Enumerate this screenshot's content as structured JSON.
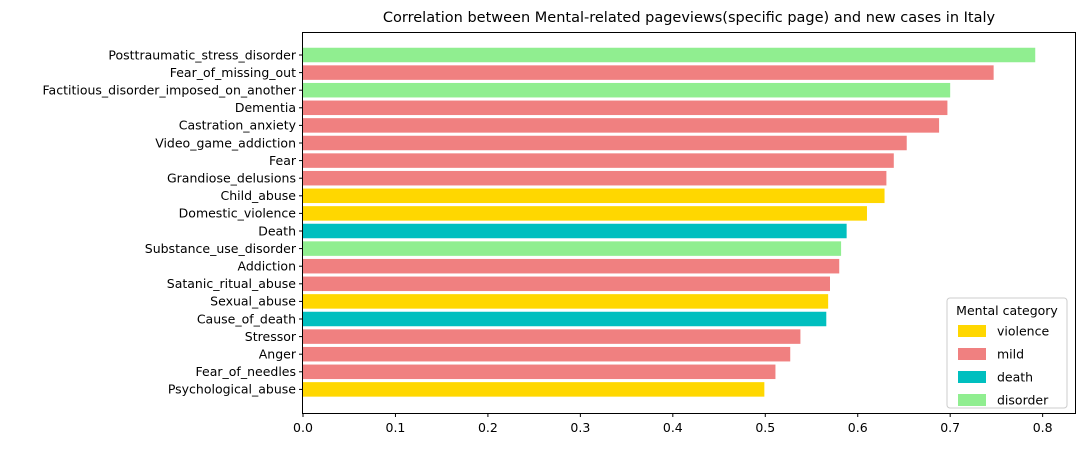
{
  "chart_data": {
    "type": "bar",
    "orientation": "horizontal",
    "title": "Correlation between Mental-related pageviews(specific page) and new cases in Italy",
    "xlabel": "",
    "ylabel": "",
    "xlim": [
      0,
      0.835
    ],
    "xticks": [
      0.0,
      0.1,
      0.2,
      0.3,
      0.4,
      0.5,
      0.6,
      0.7,
      0.8
    ],
    "xtick_labels": [
      "0.0",
      "0.1",
      "0.2",
      "0.3",
      "0.4",
      "0.5",
      "0.6",
      "0.7",
      "0.8"
    ],
    "grid": false,
    "legend": {
      "title": "Mental category",
      "placement": "lower-right",
      "entries": [
        {
          "label": "violence",
          "color": "#FFD700"
        },
        {
          "label": "mild",
          "color": "#F08080"
        },
        {
          "label": "death",
          "color": "#00BFBF"
        },
        {
          "label": "disorder",
          "color": "#90EE90"
        }
      ]
    },
    "bars": [
      {
        "label": "Posttraumatic_stress_disorder",
        "value": 0.792,
        "category": "disorder"
      },
      {
        "label": "Fear_of_missing_out",
        "value": 0.747,
        "category": "mild"
      },
      {
        "label": "Factitious_disorder_imposed_on_another",
        "value": 0.7,
        "category": "disorder"
      },
      {
        "label": "Dementia",
        "value": 0.697,
        "category": "mild"
      },
      {
        "label": "Castration_anxiety",
        "value": 0.688,
        "category": "mild"
      },
      {
        "label": "Video_game_addiction",
        "value": 0.653,
        "category": "mild"
      },
      {
        "label": "Fear",
        "value": 0.639,
        "category": "mild"
      },
      {
        "label": "Grandiose_delusions",
        "value": 0.631,
        "category": "mild"
      },
      {
        "label": "Child_abuse",
        "value": 0.629,
        "category": "violence"
      },
      {
        "label": "Domestic_violence",
        "value": 0.61,
        "category": "violence"
      },
      {
        "label": "Death",
        "value": 0.588,
        "category": "death"
      },
      {
        "label": "Substance_use_disorder",
        "value": 0.582,
        "category": "disorder"
      },
      {
        "label": "Addiction",
        "value": 0.58,
        "category": "mild"
      },
      {
        "label": "Satanic_ritual_abuse",
        "value": 0.57,
        "category": "mild"
      },
      {
        "label": "Sexual_abuse",
        "value": 0.568,
        "category": "violence"
      },
      {
        "label": "Cause_of_death",
        "value": 0.566,
        "category": "death"
      },
      {
        "label": "Stressor",
        "value": 0.538,
        "category": "mild"
      },
      {
        "label": "Anger",
        "value": 0.527,
        "category": "mild"
      },
      {
        "label": "Fear_of_needles",
        "value": 0.511,
        "category": "mild"
      },
      {
        "label": "Psychological_abuse",
        "value": 0.499,
        "category": "violence"
      }
    ]
  }
}
